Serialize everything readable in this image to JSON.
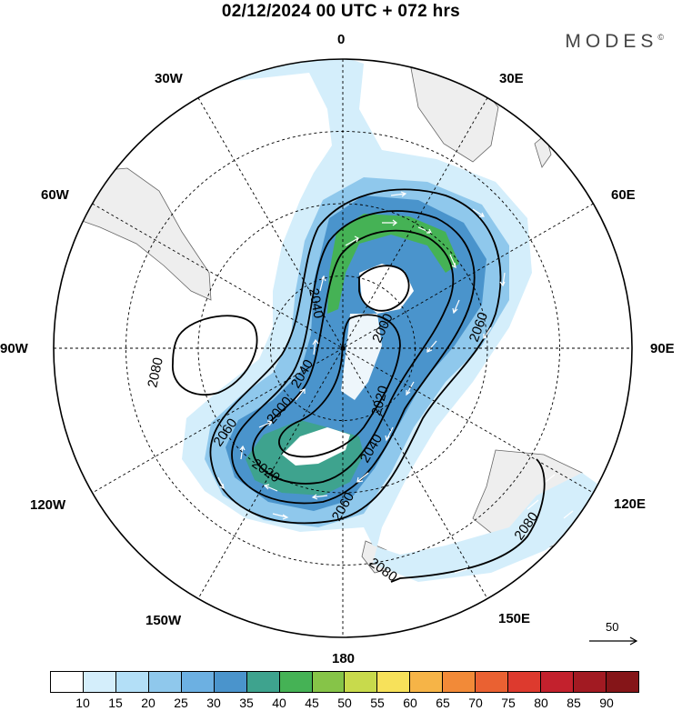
{
  "header": {
    "title": "02/12/2024  00 UTC  + 072 hrs"
  },
  "brand": {
    "name": "MODES",
    "mark": "©"
  },
  "longitude_labels": [
    "0",
    "30E",
    "60E",
    "90E",
    "120E",
    "150E",
    "180",
    "150W",
    "120W",
    "90W",
    "60W",
    "30W"
  ],
  "contour_labels": {
    "c2040a": "2040",
    "c2000a": "2000",
    "c2060a": "2060",
    "c2080a": "2080",
    "c2040b": "2040",
    "c2000b": "2000",
    "c2020a": "2020",
    "c2060b": "2060",
    "c2020b": "2020",
    "c2040c": "2040",
    "c2060c": "2060",
    "c2080b": "2080",
    "c2080c": "2080"
  },
  "reference_vector": {
    "label": "50"
  },
  "colorbar": {
    "labels": [
      "10",
      "15",
      "20",
      "25",
      "30",
      "35",
      "40",
      "45",
      "50",
      "55",
      "60",
      "65",
      "70",
      "75",
      "80",
      "85",
      "90"
    ],
    "colors": [
      "#ffffff",
      "#d4eefb",
      "#b3dff7",
      "#8fc8ec",
      "#6cb0e2",
      "#4a94cc",
      "#3ea38e",
      "#45b255",
      "#86c448",
      "#c8da4c",
      "#f7e15a",
      "#f6b447",
      "#f28a38",
      "#ea6132",
      "#dd3a2e",
      "#c3212d",
      "#a21a22",
      "#851518"
    ]
  },
  "colors": {
    "land": "#eeeeee",
    "coast": "#666666",
    "contour": "#000000",
    "vector": "#ffffff"
  }
}
